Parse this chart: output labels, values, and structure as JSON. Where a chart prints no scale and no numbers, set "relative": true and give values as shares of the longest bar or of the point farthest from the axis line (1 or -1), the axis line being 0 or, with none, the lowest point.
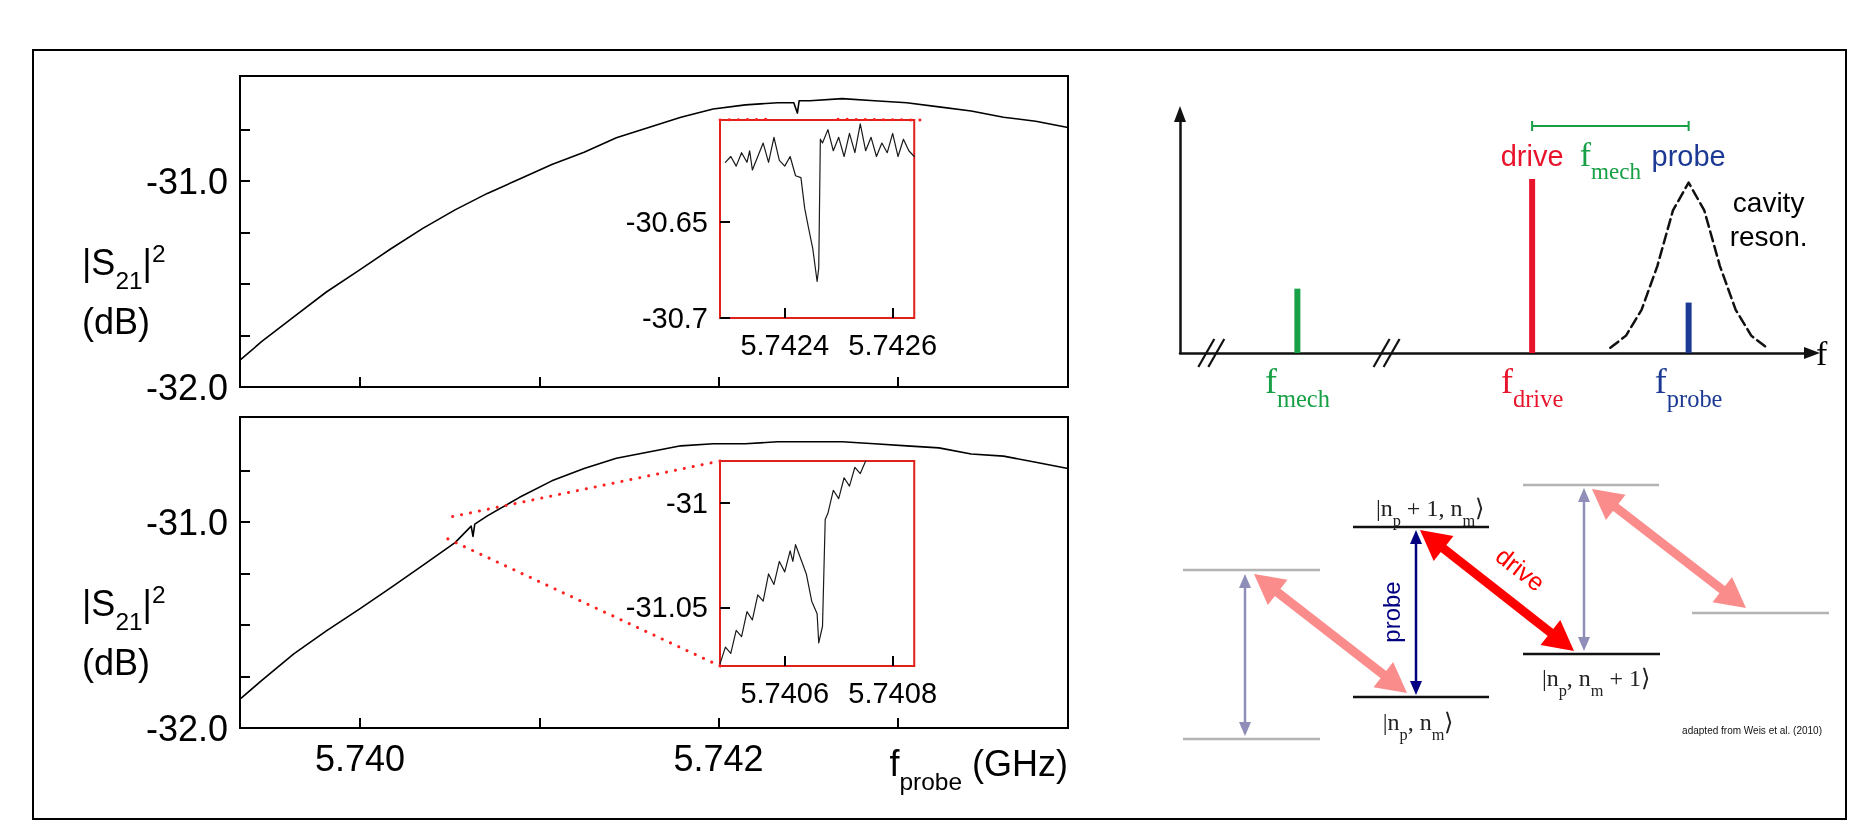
{
  "chart_data": [
    {
      "type": "line",
      "ylabel": "|S$_{21}$|$^{2}$ (dB)",
      "tick_labels": "y",
      "color": "#000000",
      "x": [
        5.73933,
        5.73945,
        5.73963,
        5.73981,
        5.74,
        5.74017,
        5.74035,
        5.74053,
        5.74071,
        5.74089,
        5.74107,
        5.74125,
        5.74143,
        5.74161,
        5.74179,
        5.74197,
        5.74215,
        5.74233,
        5.74242,
        5.74244,
        5.74245,
        5.74251,
        5.74269,
        5.74287,
        5.74305,
        5.74323,
        5.74341,
        5.74359,
        5.74377,
        5.74395
      ],
      "values": [
        -31.87,
        -31.78,
        -31.66,
        -31.54,
        -31.43,
        -31.33,
        -31.23,
        -31.14,
        -31.06,
        -30.99,
        -30.92,
        -30.86,
        -30.79,
        -30.74,
        -30.69,
        -30.65,
        -30.63,
        -30.62,
        -30.62,
        -30.67,
        -30.61,
        -30.61,
        -30.6,
        -30.61,
        -30.62,
        -30.64,
        -30.66,
        -30.69,
        -30.71,
        -30.74
      ],
      "xlim": [
        5.73933,
        5.74395
      ],
      "xticks": [
        {
          "value": 5.74,
          "label": null
        },
        {
          "value": 5.741,
          "label": null
        },
        {
          "value": 5.742,
          "label": null
        },
        {
          "value": 5.743,
          "label": null
        }
      ],
      "ylim": [
        -32,
        -30.49
      ],
      "yticks": [
        {
          "value": -32,
          "label": "-32.0"
        },
        {
          "value": -31.75,
          "label": null
        },
        {
          "value": -31.5,
          "label": null
        },
        {
          "value": -31.25,
          "label": null
        },
        {
          "value": -31,
          "label": "-31.0"
        },
        {
          "value": -30.75,
          "label": null
        }
      ]
    },
    {
      "type": "line",
      "color": "#1a1a1a",
      "x": [
        5.74229,
        5.7423,
        5.74231,
        5.74232,
        5.74233,
        5.742335,
        5.74234,
        5.74235,
        5.74236,
        5.74237,
        5.74238,
        5.74239,
        5.7424,
        5.74241,
        5.74242,
        5.74243,
        5.742437,
        5.742444,
        5.742452,
        5.74246,
        5.742463,
        5.742466,
        5.74247,
        5.74248,
        5.74249,
        5.7425,
        5.74251,
        5.74252,
        5.74253,
        5.74254,
        5.74255,
        5.74256,
        5.74257,
        5.74258,
        5.74259,
        5.7426,
        5.74261,
        5.74262,
        5.74263,
        5.74264
      ],
      "values": [
        -30.619,
        -30.616,
        -30.621,
        -30.614,
        -30.619,
        -30.613,
        -30.623,
        -30.616,
        -30.609,
        -30.619,
        -30.606,
        -30.618,
        -30.621,
        -30.616,
        -30.626,
        -30.627,
        -30.643,
        -30.653,
        -30.664,
        -30.681,
        -30.674,
        -30.607,
        -30.609,
        -30.602,
        -30.613,
        -30.606,
        -30.616,
        -30.604,
        -30.614,
        -30.599,
        -30.613,
        -30.606,
        -30.616,
        -30.609,
        -30.614,
        -30.604,
        -30.616,
        -30.607,
        -30.613,
        -30.616
      ],
      "xlim": [
        5.74228,
        5.74264
      ],
      "xticks": [
        {
          "value": 5.7424,
          "label": "5.7424"
        },
        {
          "value": 5.7426,
          "label": "5.7426"
        }
      ],
      "ylim": [
        -30.7,
        -30.597
      ],
      "yticks": [
        -30.7,
        -30.65
      ]
    },
    {
      "type": "line",
      "ylabel": "|S$_{21}$|$^{2}$ (dB)",
      "xlabel": "f$_{probe}$ (GHz)",
      "color": "#000000",
      "x": [
        5.73933,
        5.73945,
        5.73963,
        5.73981,
        5.74,
        5.74017,
        5.74035,
        5.74053,
        5.74062,
        5.74063,
        5.74064,
        5.74071,
        5.74089,
        5.74107,
        5.74125,
        5.74143,
        5.74161,
        5.74179,
        5.74197,
        5.74215,
        5.74233,
        5.74251,
        5.74269,
        5.74287,
        5.74305,
        5.74323,
        5.74341,
        5.74359,
        5.74377,
        5.74395
      ],
      "values": [
        -31.86,
        -31.77,
        -31.64,
        -31.53,
        -31.42,
        -31.32,
        -31.21,
        -31.1,
        -31.02,
        -31.07,
        -31.01,
        -30.97,
        -30.88,
        -30.8,
        -30.74,
        -30.69,
        -30.66,
        -30.63,
        -30.62,
        -30.62,
        -30.61,
        -30.61,
        -30.61,
        -30.62,
        -30.63,
        -30.64,
        -30.67,
        -30.68,
        -30.71,
        -30.74
      ],
      "xlim": [
        5.73933,
        5.74395
      ],
      "xticks": [
        {
          "value": 5.74,
          "label": "5.740"
        },
        {
          "value": 5.741,
          "label": null
        },
        {
          "value": 5.742,
          "label": "5.742"
        },
        {
          "value": 5.743,
          "label": null
        }
      ],
      "ylim": [
        -32,
        -30.49
      ],
      "yticks": [
        {
          "value": -32,
          "label": "-32.0"
        },
        {
          "value": -31.75,
          "label": null
        },
        {
          "value": -31.5,
          "label": null
        },
        {
          "value": -31.25,
          "label": null
        },
        {
          "value": -31,
          "label": "-31.0"
        },
        {
          "value": -30.75,
          "label": null
        }
      ]
    },
    {
      "type": "line",
      "color": "#1a1a1a",
      "x": [
        5.74048,
        5.74049,
        5.7405,
        5.74051,
        5.74052,
        5.74053,
        5.74054,
        5.74055,
        5.74056,
        5.74057,
        5.74058,
        5.74059,
        5.7406,
        5.74061,
        5.740615,
        5.74062,
        5.74063,
        5.74064,
        5.74065,
        5.74066,
        5.740663,
        5.74067,
        5.740675,
        5.74068,
        5.74069,
        5.7407,
        5.74071,
        5.74072,
        5.74073,
        5.74074,
        5.74075
      ],
      "values": [
        -31.077,
        -31.069,
        -31.072,
        -31.061,
        -31.064,
        -31.052,
        -31.056,
        -31.044,
        -31.047,
        -31.034,
        -31.039,
        -31.028,
        -31.033,
        -31.023,
        -31.028,
        -31.02,
        -31.027,
        -31.034,
        -31.047,
        -31.053,
        -31.067,
        -31.059,
        -31.008,
        -31.005,
        -30.994,
        -30.998,
        -30.988,
        -30.992,
        -30.983,
        -30.986,
        -30.98
      ],
      "xlim": [
        5.74048,
        5.74084
      ],
      "xticks": [
        {
          "value": 5.7406,
          "label": "5.7406"
        },
        {
          "value": 5.7408,
          "label": "5.7408"
        }
      ],
      "ylim": [
        -31.078,
        -30.98
      ],
      "yticks": [
        -31.05,
        -31
      ]
    },
    {
      "type": "bar",
      "relative": true,
      "xlabel": "f",
      "tick_labels": "x",
      "categories": [
        null,
        null,
        null,
        null,
        null,
        null,
        null,
        "f$_{mech}$",
        null,
        null,
        null,
        null,
        null,
        null,
        null,
        null,
        null,
        null,
        null,
        null,
        null,
        null,
        "f$_{drive}$",
        null,
        null,
        null,
        null,
        null,
        null,
        null,
        null,
        null,
        "f$_{probe}$",
        null,
        null,
        null,
        null,
        null,
        null,
        null
      ],
      "series": [
        {
          "color": "#17a046",
          "values": [
            null,
            null,
            null,
            null,
            null,
            null,
            null,
            0.37,
            null,
            null,
            null,
            null,
            null,
            null,
            null,
            null,
            null,
            null,
            null,
            null,
            null,
            null,
            null,
            null,
            null,
            null,
            null,
            null,
            null,
            null,
            null,
            null,
            null,
            null,
            null,
            null,
            null,
            null,
            null,
            null
          ]
        },
        {
          "color": "#e8142c",
          "values": [
            null,
            null,
            null,
            null,
            null,
            null,
            null,
            null,
            null,
            null,
            null,
            null,
            null,
            null,
            null,
            null,
            null,
            null,
            null,
            null,
            null,
            null,
            1,
            null,
            null,
            null,
            null,
            null,
            null,
            null,
            null,
            null,
            null,
            null,
            null,
            null,
            null,
            null,
            null,
            null
          ]
        },
        {
          "color": "#1c3a94",
          "values": [
            null,
            null,
            null,
            null,
            null,
            null,
            null,
            null,
            null,
            null,
            null,
            null,
            null,
            null,
            null,
            null,
            null,
            null,
            null,
            null,
            null,
            null,
            null,
            null,
            null,
            null,
            null,
            null,
            null,
            null,
            null,
            null,
            0.29,
            null,
            null,
            null,
            null,
            null,
            null,
            null
          ]
        },
        {
          "type": "line",
          "color": "#111111",
          "line_style": "dashed",
          "values": [
            null,
            null,
            null,
            null,
            null,
            null,
            null,
            null,
            null,
            null,
            null,
            null,
            null,
            null,
            null,
            null,
            null,
            null,
            null,
            null,
            null,
            null,
            null,
            null,
            null,
            null,
            null,
            0.03,
            0.1,
            0.25,
            0.5,
            0.82,
            0.98,
            0.82,
            0.5,
            0.25,
            0.1,
            0.03,
            null,
            null
          ]
        }
      ],
      "annotations": [
        "drive",
        "f$_{mech}$",
        "probe",
        "cavity reson."
      ]
    },
    {
      "type": "other",
      "annotations": [
        "|n$_{p}$ + 1, n$_{m}$⟩",
        "|n$_{p}$, n$_{m}$⟩",
        "|n$_{p}$, n$_{m}$ + 1⟩",
        "probe",
        "drive",
        "adapted from Weis et al. (2010)"
      ]
    }
  ]
}
